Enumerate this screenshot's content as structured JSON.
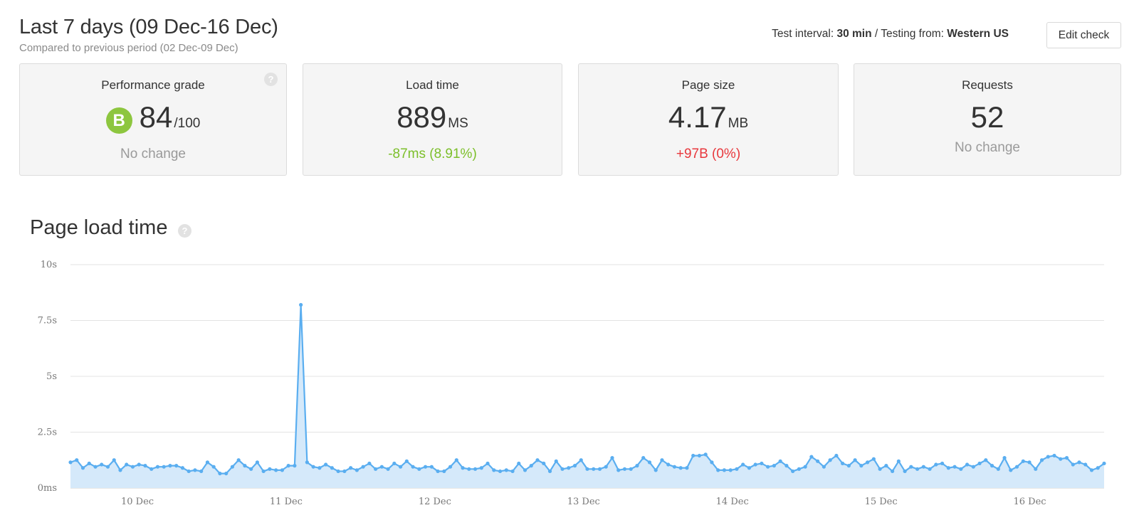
{
  "header": {
    "title": "Last 7 days (09 Dec-16 Dec)",
    "subtitle": "Compared to previous period (02 Dec-09 Dec)"
  },
  "test_info": {
    "interval_label": "Test interval:",
    "interval_value": "30 min",
    "separator": "/",
    "from_label": "Testing from:",
    "from_value": "Western US"
  },
  "edit_button": "Edit check",
  "cards": {
    "grade": {
      "label": "Performance grade",
      "letter": "B",
      "value": "84",
      "unit": "/100",
      "change": "No change"
    },
    "load": {
      "label": "Load time",
      "value": "889",
      "unit": "MS",
      "change": "-87ms (8.91%)"
    },
    "size": {
      "label": "Page size",
      "value": "4.17",
      "unit": "MB",
      "change": "+97B (0%)"
    },
    "requests": {
      "label": "Requests",
      "value": "52",
      "change": "No change"
    }
  },
  "help_icon": "question-icon",
  "colors": {
    "good": "#7cbf2a",
    "bad": "#e8383d",
    "neutral": "#9a9a9a",
    "grade": "#8dc63f",
    "series": "#5aaef0",
    "fill": "#d5e9fa"
  },
  "section_title": "Page load time",
  "chart_data": {
    "type": "area",
    "title": "Page load time",
    "ylabel": "",
    "xlabel": "",
    "ylim": [
      0,
      10
    ],
    "y_ticks": [
      "0ms",
      "2.5s",
      "5s",
      "7.5s",
      "10s"
    ],
    "y_tick_values": [
      0,
      2.5,
      5,
      7.5,
      10
    ],
    "x_ticks": [
      "10 Dec",
      "11 Dec",
      "12 Dec",
      "13 Dec",
      "14 Dec",
      "15 Dec",
      "16 Dec"
    ],
    "x_range_days": [
      9.55,
      16.5
    ],
    "x_tick_values": [
      10,
      11,
      12,
      13,
      14,
      15,
      16
    ],
    "grid": true,
    "series": [
      {
        "name": "",
        "values": [
          1.15,
          1.25,
          0.9,
          1.1,
          0.95,
          1.05,
          0.95,
          1.25,
          0.8,
          1.05,
          0.95,
          1.05,
          1.0,
          0.85,
          0.95,
          0.95,
          1.0,
          1.0,
          0.9,
          0.75,
          0.8,
          0.75,
          1.15,
          0.95,
          0.65,
          0.65,
          0.95,
          1.25,
          1.0,
          0.85,
          1.15,
          0.75,
          0.85,
          0.8,
          0.8,
          1.0,
          1.0,
          8.2,
          1.15,
          0.95,
          0.9,
          1.05,
          0.9,
          0.75,
          0.75,
          0.9,
          0.8,
          0.95,
          1.1,
          0.85,
          0.95,
          0.85,
          1.1,
          0.95,
          1.2,
          0.95,
          0.85,
          0.95,
          0.95,
          0.75,
          0.75,
          0.95,
          1.25,
          0.9,
          0.85,
          0.85,
          0.9,
          1.1,
          0.8,
          0.75,
          0.8,
          0.75,
          1.1,
          0.8,
          1.0,
          1.25,
          1.1,
          0.75,
          1.2,
          0.85,
          0.9,
          1.0,
          1.25,
          0.85,
          0.85,
          0.85,
          0.95,
          1.35,
          0.8,
          0.85,
          0.85,
          1.0,
          1.35,
          1.15,
          0.8,
          1.25,
          1.05,
          0.95,
          0.9,
          0.9,
          1.45,
          1.45,
          1.5,
          1.15,
          0.8,
          0.8,
          0.8,
          0.85,
          1.05,
          0.9,
          1.05,
          1.1,
          0.95,
          1.0,
          1.2,
          1.0,
          0.75,
          0.85,
          0.95,
          1.4,
          1.2,
          0.95,
          1.25,
          1.45,
          1.1,
          1.0,
          1.25,
          1.0,
          1.15,
          1.3,
          0.85,
          1.0,
          0.75,
          1.2,
          0.75,
          0.95,
          0.85,
          0.95,
          0.85,
          1.05,
          1.1,
          0.9,
          0.95,
          0.85,
          1.05,
          0.95,
          1.1,
          1.25,
          1.0,
          0.85,
          1.35,
          0.8,
          0.95,
          1.2,
          1.15,
          0.85,
          1.25,
          1.4,
          1.45,
          1.3,
          1.35,
          1.05,
          1.15,
          1.05,
          0.8,
          0.9,
          1.1
        ]
      }
    ]
  }
}
